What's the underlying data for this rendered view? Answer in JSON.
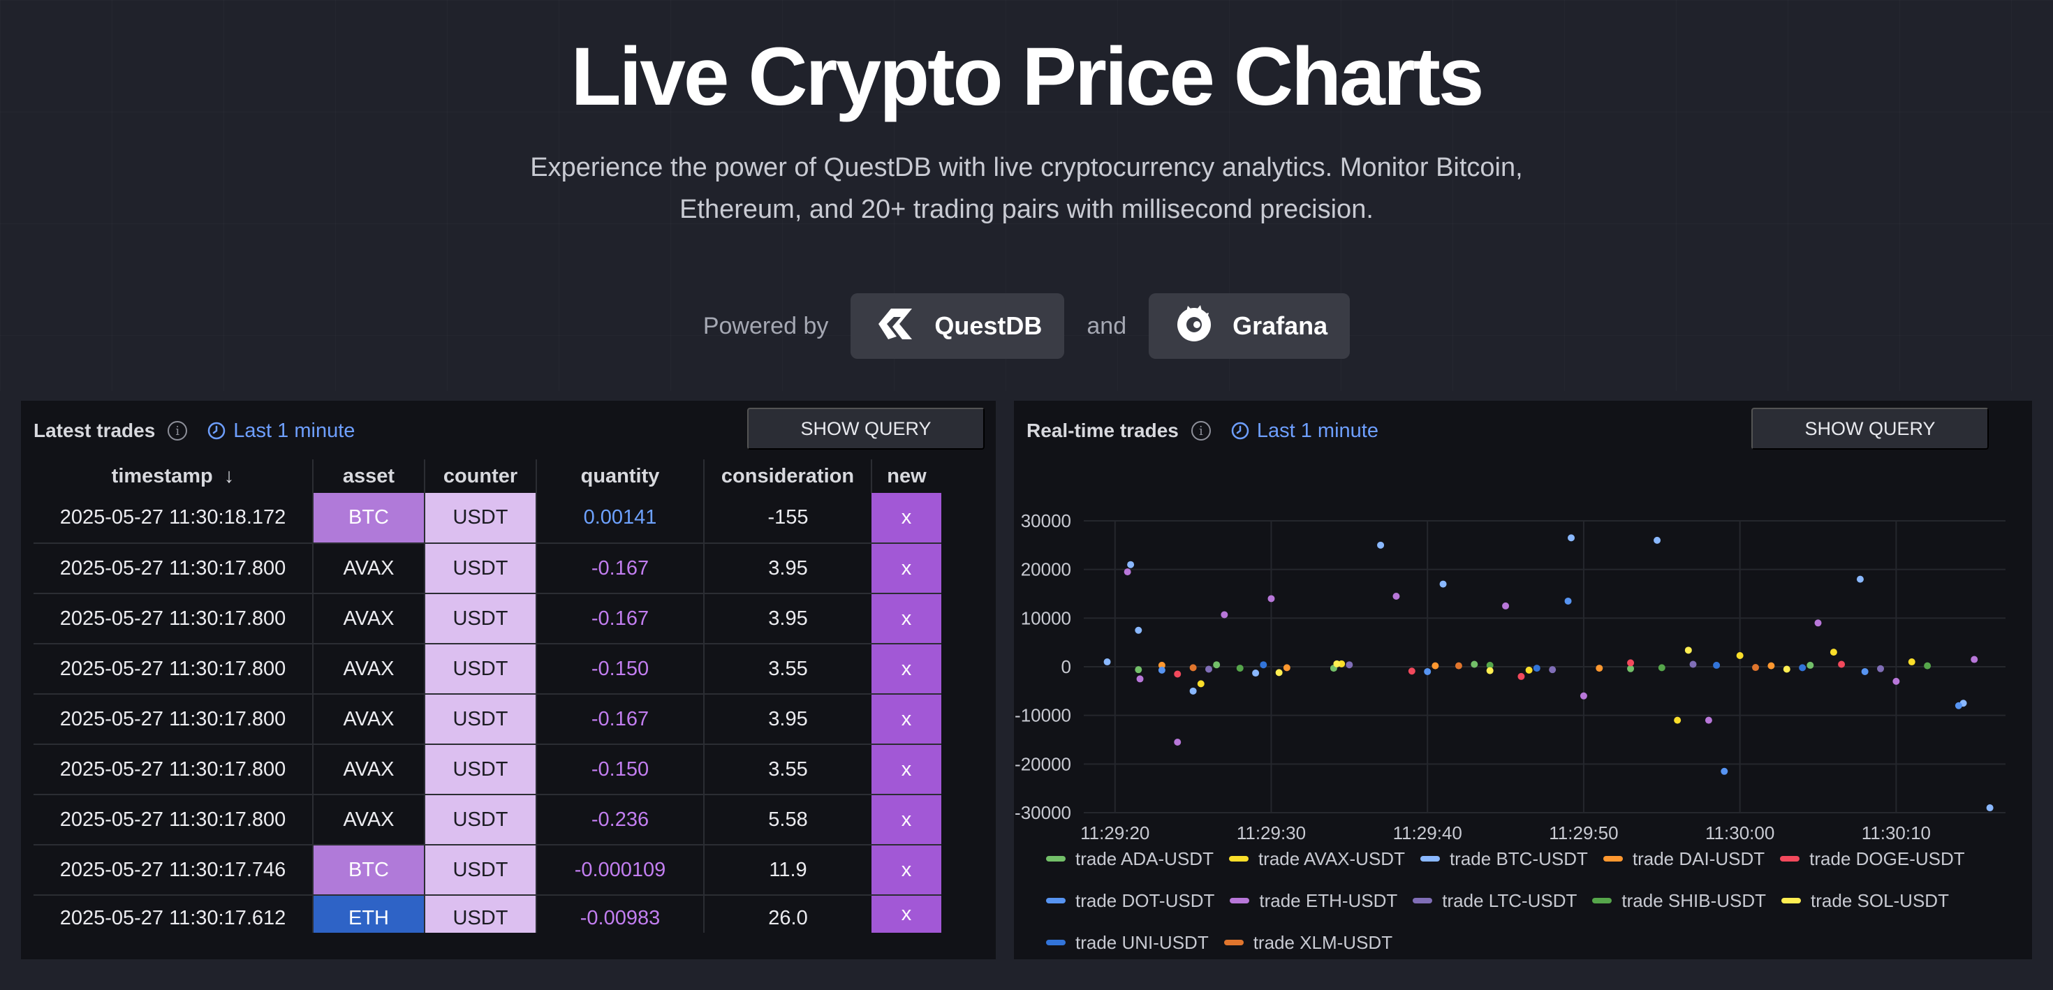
{
  "hero": {
    "title": "Live Crypto Price Charts",
    "subtitle": "Experience the power of QuestDB with live cryptocurrency analytics. Monitor Bitcoin, Ethereum, and 20+ trading pairs with millisecond precision.",
    "powered_by": "Powered by",
    "and": "and",
    "questdb_label": "QuestDB",
    "grafana_label": "Grafana"
  },
  "latest_trades": {
    "title": "Latest trades",
    "time_range": "Last 1 minute",
    "show_query": "SHOW QUERY",
    "columns": {
      "timestamp": "timestamp",
      "sort_arrow": "↓",
      "asset": "asset",
      "counter": "counter",
      "quantity": "quantity",
      "consideration": "consideration",
      "new": "new"
    },
    "rows": [
      {
        "timestamp": "2025-05-27 11:30:18.172",
        "asset": "BTC",
        "counter": "USDT",
        "quantity": "0.00141",
        "consideration": "-155",
        "new": "x",
        "asset_style": "hot",
        "qty_style": "pos"
      },
      {
        "timestamp": "2025-05-27 11:30:17.800",
        "asset": "AVAX",
        "counter": "USDT",
        "quantity": "-0.167",
        "consideration": "3.95",
        "new": "x",
        "asset_style": "plain",
        "qty_style": "neg"
      },
      {
        "timestamp": "2025-05-27 11:30:17.800",
        "asset": "AVAX",
        "counter": "USDT",
        "quantity": "-0.167",
        "consideration": "3.95",
        "new": "x",
        "asset_style": "plain",
        "qty_style": "neg"
      },
      {
        "timestamp": "2025-05-27 11:30:17.800",
        "asset": "AVAX",
        "counter": "USDT",
        "quantity": "-0.150",
        "consideration": "3.55",
        "new": "x",
        "asset_style": "plain",
        "qty_style": "neg"
      },
      {
        "timestamp": "2025-05-27 11:30:17.800",
        "asset": "AVAX",
        "counter": "USDT",
        "quantity": "-0.167",
        "consideration": "3.95",
        "new": "x",
        "asset_style": "plain",
        "qty_style": "neg"
      },
      {
        "timestamp": "2025-05-27 11:30:17.800",
        "asset": "AVAX",
        "counter": "USDT",
        "quantity": "-0.150",
        "consideration": "3.55",
        "new": "x",
        "asset_style": "plain",
        "qty_style": "neg"
      },
      {
        "timestamp": "2025-05-27 11:30:17.800",
        "asset": "AVAX",
        "counter": "USDT",
        "quantity": "-0.236",
        "consideration": "5.58",
        "new": "x",
        "asset_style": "plain",
        "qty_style": "neg"
      },
      {
        "timestamp": "2025-05-27 11:30:17.746",
        "asset": "BTC",
        "counter": "USDT",
        "quantity": "-0.000109",
        "consideration": "11.9",
        "new": "x",
        "asset_style": "hot",
        "qty_style": "neg"
      },
      {
        "timestamp": "2025-05-27 11:30:17.612",
        "asset": "ETH",
        "counter": "USDT",
        "quantity": "-0.00983",
        "consideration": "26.0",
        "new": "x",
        "asset_style": "eth",
        "qty_style": "neg"
      }
    ]
  },
  "realtime_trades": {
    "title": "Real-time trades",
    "time_range": "Last 1 minute",
    "show_query": "SHOW QUERY"
  },
  "colors": {
    "new_cell": "#a258d6",
    "asset_hot": "#b07ad9",
    "asset_eth": "#2e63c6",
    "counter_cell": "#dcbff0",
    "link_blue": "#6e9fff"
  },
  "chart_data": {
    "type": "scatter",
    "title": "Real-time trades",
    "xlabel": "",
    "ylabel": "",
    "x_unit": "seconds since 11:29:20",
    "xlim": [
      -2,
      57
    ],
    "ylim": [
      -30000,
      30000
    ],
    "x_ticks": [
      0,
      10,
      20,
      30,
      40,
      50
    ],
    "x_tick_labels": [
      "11:29:20",
      "11:29:30",
      "11:29:40",
      "11:29:50",
      "11:30:00",
      "11:30:10"
    ],
    "y_ticks": [
      30000,
      20000,
      10000,
      0,
      -10000,
      -20000,
      -30000
    ],
    "y_tick_labels": [
      "30000",
      "20000",
      "10000",
      "0",
      "-10000",
      "-20000",
      "-30000"
    ],
    "grid": true,
    "legend_position": "bottom",
    "series": [
      {
        "name": "trade ADA-USDT",
        "color": "#73bf69",
        "x": [
          1.5,
          6.5,
          14,
          23,
          33,
          44.5
        ],
        "y": [
          -600,
          400,
          -300,
          500,
          -400,
          300
        ]
      },
      {
        "name": "trade AVAX-USDT",
        "color": "#fade2a",
        "x": [
          5.5,
          14.5,
          26.5,
          36,
          40,
          46,
          51
        ],
        "y": [
          -3500,
          600,
          -700,
          -11000,
          2300,
          3000,
          1000
        ]
      },
      {
        "name": "trade BTC-USDT",
        "color": "#8ab8ff",
        "x": [
          -0.5,
          1,
          1.5,
          5,
          9,
          17,
          21,
          29.2,
          34.7,
          47.7,
          54.3,
          56
        ],
        "y": [
          1000,
          21000,
          7500,
          -5000,
          -1300,
          25000,
          17000,
          26500,
          26000,
          18000,
          -7500,
          -29000
        ]
      },
      {
        "name": "trade DAI-USDT",
        "color": "#ff9830",
        "x": [
          3,
          11,
          20.5,
          31,
          42
        ],
        "y": [
          300,
          -200,
          200,
          -300,
          200
        ]
      },
      {
        "name": "trade DOGE-USDT",
        "color": "#f2495c",
        "x": [
          4,
          19,
          26,
          33,
          46.5
        ],
        "y": [
          -1500,
          -900,
          -2000,
          800,
          500
        ]
      },
      {
        "name": "trade DOT-USDT",
        "color": "#5794f2",
        "x": [
          3,
          20,
          29,
          39,
          48,
          54
        ],
        "y": [
          -700,
          -1000,
          13500,
          -21500,
          -1000,
          -8000
        ]
      },
      {
        "name": "trade ETH-USDT",
        "color": "#b877d9",
        "x": [
          0.8,
          1.6,
          4,
          7,
          10,
          18,
          25,
          30,
          38,
          45,
          50,
          55
        ],
        "y": [
          19500,
          -2500,
          -15500,
          10700,
          14000,
          14500,
          12500,
          -6000,
          -11000,
          9000,
          -3000,
          1500
        ]
      },
      {
        "name": "trade LTC-USDT",
        "color": "#806eb7",
        "x": [
          6,
          15,
          28,
          37,
          49
        ],
        "y": [
          -500,
          400,
          -600,
          500,
          -400
        ]
      },
      {
        "name": "trade SHIB-USDT",
        "color": "#56a64b",
        "x": [
          8,
          24,
          35,
          52
        ],
        "y": [
          -300,
          300,
          -200,
          200
        ]
      },
      {
        "name": "trade SOL-USDT",
        "color": "#ffee52",
        "x": [
          10.5,
          14.2,
          24,
          36.7,
          43
        ],
        "y": [
          -1200,
          600,
          -800,
          3400,
          -500
        ]
      },
      {
        "name": "trade UNI-USDT",
        "color": "#3274d9",
        "x": [
          9.5,
          27,
          38.5,
          44
        ],
        "y": [
          400,
          -300,
          300,
          -200
        ]
      },
      {
        "name": "trade XLM-USDT",
        "color": "#e0752d",
        "x": [
          5,
          22,
          41
        ],
        "y": [
          -200,
          200,
          -150
        ]
      }
    ]
  }
}
